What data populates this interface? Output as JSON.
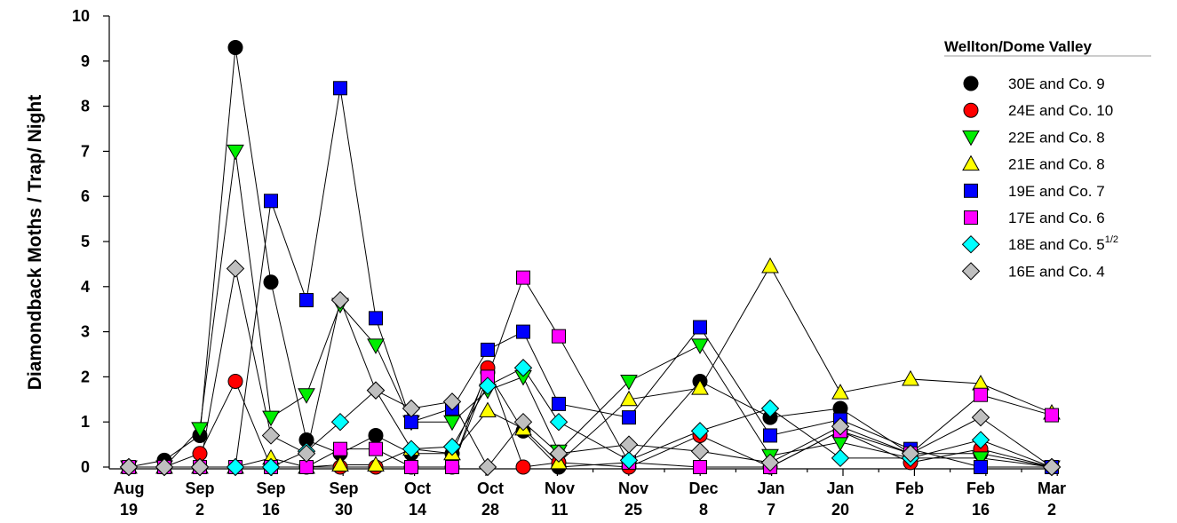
{
  "chart_data": {
    "type": "line",
    "ylabel": "Diamondback Moths / Trap/ Night",
    "ylim": [
      0,
      10
    ],
    "yticks": [
      "0",
      "1",
      "2",
      "3",
      "4",
      "5",
      "6",
      "7",
      "8",
      "9",
      "10"
    ],
    "x_tick_labels": [
      [
        "Aug",
        "19"
      ],
      [
        "Sep",
        "2"
      ],
      [
        "Sep",
        "16"
      ],
      [
        "Sep",
        "30"
      ],
      [
        "Oct",
        "14"
      ],
      [
        "Oct",
        "28"
      ],
      [
        "Nov",
        "11"
      ],
      [
        "Nov",
        "25"
      ],
      [
        "Dec",
        "8"
      ],
      [
        "Jan",
        "7"
      ],
      [
        "Jan",
        "20"
      ],
      [
        "Feb",
        "2"
      ],
      [
        "Feb",
        "16"
      ],
      [
        "Mar",
        "2"
      ]
    ],
    "sample_dates": [
      "Aug 19",
      "Aug 26",
      "Sep 2",
      "Sep 9",
      "Sep 16",
      "Sep 23",
      "Sep 30",
      "Oct 7",
      "Oct 14",
      "Oct 21",
      "Oct 28",
      "Nov 4",
      "Nov 11",
      "Nov 25",
      "Dec 8",
      "Jan 7",
      "Jan 20",
      "Feb 2",
      "Feb 16",
      "Mar 2"
    ],
    "legend": {
      "title": "Wellton/Dome Valley",
      "position": "top-right"
    },
    "grid": false,
    "series": [
      {
        "name": "30E and Co. 9",
        "marker": "circle",
        "color": "#000000",
        "points": [
          [
            0,
            0
          ],
          [
            1,
            0.15
          ],
          [
            2,
            0.7
          ],
          [
            3,
            9.3
          ],
          [
            4,
            4.1
          ],
          [
            5,
            0.6
          ],
          [
            6,
            0.3
          ],
          [
            7,
            0.7
          ],
          [
            8,
            0.3
          ],
          [
            9,
            0.3
          ],
          [
            10,
            2.1
          ],
          [
            11,
            0.8
          ],
          [
            12,
            0
          ],
          [
            13,
            0.1
          ],
          [
            14,
            1.9
          ],
          [
            15,
            1.1
          ],
          [
            16,
            1.3
          ],
          [
            17,
            0.3
          ],
          [
            18,
            0.3
          ],
          [
            19,
            0
          ]
        ]
      },
      {
        "name": "24E and Co. 10",
        "marker": "circle",
        "color": "#ff0000",
        "points": [
          [
            0,
            0
          ],
          [
            1,
            0
          ],
          [
            2,
            0.3
          ],
          [
            3,
            1.9
          ],
          [
            4,
            0
          ],
          [
            5,
            0
          ],
          [
            6,
            0
          ],
          [
            7,
            0
          ],
          [
            8,
            0
          ],
          [
            9,
            0
          ],
          [
            10,
            2.2
          ],
          [
            11,
            0
          ],
          [
            12,
            0.1
          ],
          [
            13,
            0
          ],
          [
            14,
            0.7
          ],
          [
            15,
            0
          ],
          [
            16,
            0.8
          ],
          [
            17,
            0.1
          ],
          [
            18,
            0.4
          ],
          [
            19,
            0
          ]
        ]
      },
      {
        "name": "22E and Co. 8",
        "marker": "triangle-down",
        "color": "#00ee00",
        "points": [
          [
            0,
            0
          ],
          [
            1,
            0
          ],
          [
            2,
            0.85
          ],
          [
            3,
            7.0
          ],
          [
            4,
            1.1
          ],
          [
            5,
            1.6
          ],
          [
            6,
            3.6
          ],
          [
            7,
            2.7
          ],
          [
            8,
            1.0
          ],
          [
            9,
            1.0
          ],
          [
            10,
            1.7
          ],
          [
            11,
            2.0
          ],
          [
            12,
            0.35
          ],
          [
            13,
            1.9
          ],
          [
            14,
            2.7
          ],
          [
            15,
            0.25
          ],
          [
            16,
            0.55
          ],
          [
            17,
            0.2
          ],
          [
            18,
            0.2
          ],
          [
            19,
            0
          ]
        ]
      },
      {
        "name": "21E and Co. 8",
        "marker": "triangle-up",
        "color": "#ffff00",
        "points": [
          [
            0,
            0
          ],
          [
            1,
            0
          ],
          [
            2,
            0
          ],
          [
            3,
            0
          ],
          [
            4,
            0.2
          ],
          [
            5,
            0
          ],
          [
            6,
            0.05
          ],
          [
            7,
            0.05
          ],
          [
            8,
            0.4
          ],
          [
            9,
            0.3
          ],
          [
            10,
            1.25
          ],
          [
            11,
            0.85
          ],
          [
            12,
            0.1
          ],
          [
            13,
            1.5
          ],
          [
            14,
            1.75
          ],
          [
            15,
            4.45
          ],
          [
            16,
            1.65
          ],
          [
            17,
            1.95
          ],
          [
            18,
            1.85
          ],
          [
            19,
            1.2
          ]
        ]
      },
      {
        "name": "19E and Co. 7",
        "marker": "square",
        "color": "#0000ff",
        "points": [
          [
            0,
            0
          ],
          [
            1,
            0
          ],
          [
            2,
            0
          ],
          [
            3,
            0
          ],
          [
            4,
            5.9
          ],
          [
            5,
            3.7
          ],
          [
            6,
            8.4
          ],
          [
            7,
            3.3
          ],
          [
            8,
            1.0
          ],
          [
            9,
            1.3
          ],
          [
            10,
            2.6
          ],
          [
            11,
            3.0
          ],
          [
            12,
            1.4
          ],
          [
            13,
            1.1
          ],
          [
            14,
            3.1
          ],
          [
            15,
            0.7
          ],
          [
            16,
            1.05
          ],
          [
            17,
            0.4
          ],
          [
            18,
            0
          ],
          [
            19,
            0
          ]
        ]
      },
      {
        "name": "17E and Co. 6",
        "marker": "square",
        "color": "#ff00ff",
        "points": [
          [
            0,
            0
          ],
          [
            1,
            0
          ],
          [
            2,
            0
          ],
          [
            3,
            0
          ],
          [
            4,
            0
          ],
          [
            5,
            0
          ],
          [
            6,
            0.4
          ],
          [
            7,
            0.4
          ],
          [
            8,
            0
          ],
          [
            9,
            0
          ],
          [
            10,
            2.0
          ],
          [
            11,
            4.2
          ],
          [
            12,
            2.9
          ],
          [
            13,
            0.1
          ],
          [
            14,
            0
          ],
          [
            15,
            0
          ],
          [
            16,
            0.8
          ],
          [
            17,
            0.3
          ],
          [
            18,
            1.6
          ],
          [
            19,
            1.15
          ]
        ]
      },
      {
        "name": "18E and Co. 5",
        "name_superscript": "1/2",
        "marker": "diamond",
        "color": "#00ffff",
        "points": [
          [
            0,
            0
          ],
          [
            1,
            0
          ],
          [
            2,
            0
          ],
          [
            3,
            0
          ],
          [
            4,
            0
          ],
          [
            5,
            0.35
          ],
          [
            6,
            1.0
          ],
          [
            7,
            1.7
          ],
          [
            8,
            0.4
          ],
          [
            9,
            0.45
          ],
          [
            10,
            1.8
          ],
          [
            11,
            2.2
          ],
          [
            12,
            1.0
          ],
          [
            13,
            0.15
          ],
          [
            14,
            0.8
          ],
          [
            15,
            1.3
          ],
          [
            16,
            0.2
          ],
          [
            17,
            0.2
          ],
          [
            18,
            0.6
          ],
          [
            19,
            0
          ]
        ]
      },
      {
        "name": "16E and Co. 4",
        "marker": "diamond",
        "color": "#bfbfbf",
        "points": [
          [
            0,
            0
          ],
          [
            1,
            0
          ],
          [
            2,
            0
          ],
          [
            3,
            4.4
          ],
          [
            4,
            0.7
          ],
          [
            5,
            0.3
          ],
          [
            6,
            3.7
          ],
          [
            7,
            1.7
          ],
          [
            8,
            1.3
          ],
          [
            9,
            1.45
          ],
          [
            10,
            0
          ],
          [
            11,
            1.0
          ],
          [
            12,
            0.3
          ],
          [
            13,
            0.5
          ],
          [
            14,
            0.35
          ],
          [
            15,
            0.1
          ],
          [
            16,
            0.9
          ],
          [
            17,
            0.3
          ],
          [
            18,
            1.1
          ],
          [
            19,
            0
          ]
        ]
      }
    ]
  }
}
